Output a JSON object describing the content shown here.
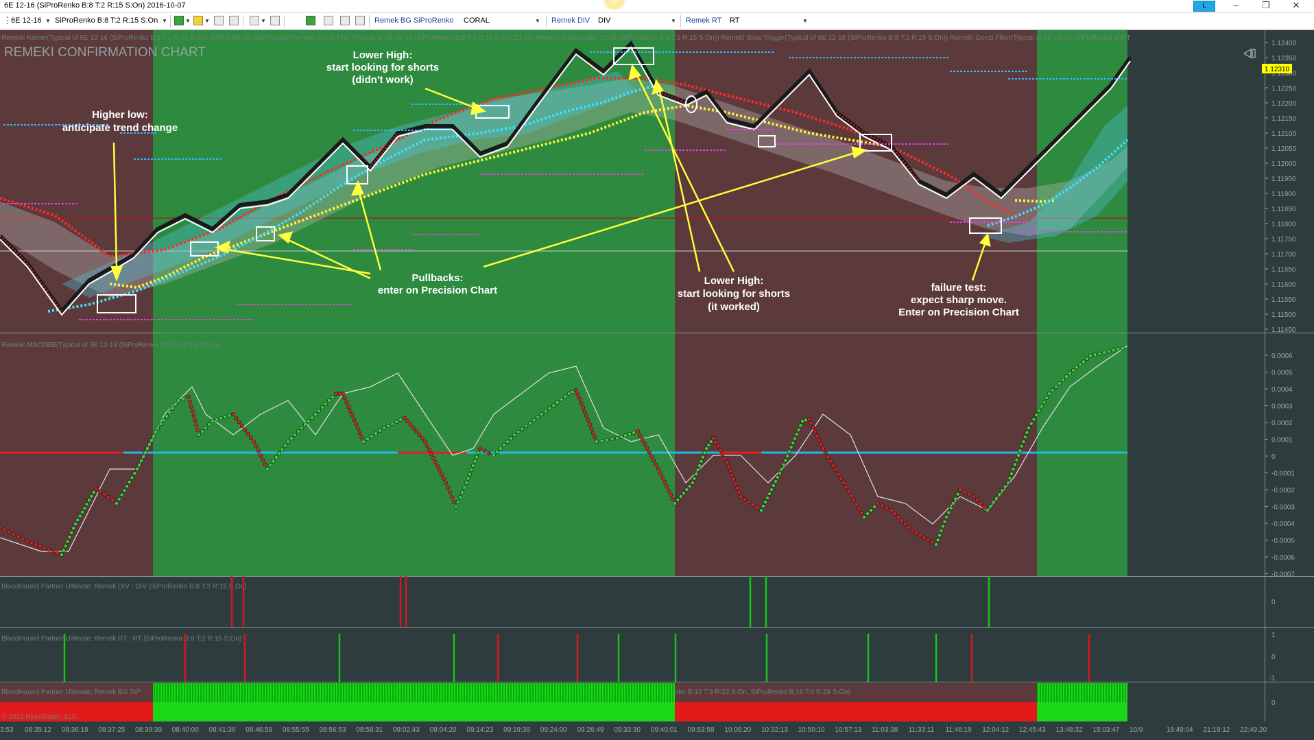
{
  "window": {
    "title": "6E 12-16 (SiProRenko B:8 T:2 R:15 S:On)  2016-10-07",
    "link_button": "L",
    "minimize": "–",
    "restore": "❐",
    "close": "✕"
  },
  "toolbar": {
    "instrument": "6E 12-16",
    "bar_type": "SiProRenko B:8 T:2 R:15 S:On",
    "remek_bg_label": "Remek BG SiProRenko",
    "remek_bg_value": "CORAL",
    "remek_div_label": "Remek DIV",
    "remek_div_value": "DIV",
    "remek_rt_label": "Remek RT",
    "remek_rt_value": "RT"
  },
  "price_panel": {
    "watermark": "REMEKI CONFIRMATION CHART",
    "indicator_header": "Remek! Kelner(Typical of 6E 12-16 (SiProRenko B:8 T:2 R:15 S:On),EMA,EMA,Simple(Range)  Remek! Gonzi Filter(Typical of 6E 12-16 (SiProRenko B:8 T:2 R:15 S:On),21,30)  Remek! Bolinger(6E 12-16 (SiProRenko B:8 T:2 R:15 S:On))  Remek! Slow Trigger(Typical of 6E 12-16 (SiProRenko B:8 T:2 R:15 S:On))  Remek! Gonzi Filter(Typical of 6E 12-16 (SiProRenko B:8 T",
    "last_price": "1.12310",
    "price_ticks": [
      "1.12400",
      "1.12350",
      "1.12300",
      "1.12250",
      "1.12200",
      "1.12150",
      "1.12100",
      "1.12050",
      "1.12000",
      "1.11950",
      "1.11900",
      "1.11850",
      "1.11800",
      "1.11750",
      "1.11700",
      "1.11650",
      "1.11600",
      "1.11550",
      "1.11500",
      "1.11450"
    ]
  },
  "annotations": {
    "higher_low": [
      "Higher low:",
      "anticipate trend change"
    ],
    "lower_high_1": [
      "Lower High:",
      "start looking for shorts",
      "(didn't work)"
    ],
    "pullbacks": [
      "Pullbacks:",
      "enter on Precision Chart"
    ],
    "lower_high_2": [
      "Lower High:",
      "start looking for shorts",
      "(it worked)"
    ],
    "failure_test": [
      "failure test:",
      "expect sharp move.",
      "Enter on Precision Chart"
    ]
  },
  "macd_panel": {
    "header": "Remek! MACDBB(Typical of 6E 12-16 (SiProRenko B:8 T:2 R:15 S:On))",
    "ticks": [
      "0.0006",
      "0.0005",
      "0.0004",
      "0.0003",
      "0.0002",
      "0.0001",
      "0",
      "-0.0001",
      "-0.0002",
      "-0.0003",
      "-0.0004",
      "-0.0005",
      "-0.0006",
      "-0.0007"
    ]
  },
  "div_panel": {
    "header": "BloodHound Partner Ultimate: Remek DIV : DIV (SiProRenko B:8 T:2 R:15 S:On)",
    "ticks": [
      "0"
    ]
  },
  "rt_panel": {
    "header": "BloodHound Partner Ultimate: Remek RT : RT (SiProRenko B:8 T:2 R:15 S:On)",
    "ticks": [
      "1",
      "0",
      "-1"
    ]
  },
  "bg_panel": {
    "header": "BloodHound Partner Ultimate: Remek BG SiP",
    "header_right": "nko B:12 T:3 R:22 S:On, SiProRenko B:16 T:4 R:29 S:On)",
    "ticks": [
      "0"
    ],
    "copyright": "© 2016 NinjaTrader, LLC"
  },
  "time_axis": [
    "08:35:12",
    "08:36:18",
    "08:37:25",
    "08:39:39",
    "08:40:00",
    "08:41:36",
    "08:46:59",
    "08:55:55",
    "08:56:53",
    "08:58:31",
    "09:02:43",
    "09:04:20",
    "09:14:23",
    "09:19:36",
    "09:24:00",
    "09:26:49",
    "09:33:30",
    "09:40:01",
    "09:53:58",
    "10:06:20",
    "10:32:13",
    "10:50:10",
    "10:57:13",
    "11:03:38",
    "11:33:11",
    "11:46:19",
    "12:04:12",
    "12:45:43",
    "13:48:32",
    "15:03:47",
    "10/9",
    "19:49:04",
    "21:19:12",
    "22:49:20"
  ],
  "time_axis_left_partial": "3:53",
  "colors": {
    "bg_red": "#5c3a3b",
    "bg_green": "#2e8a3e",
    "bg_dark": "#2f3c3e",
    "annot_arrow": "#ffff3c",
    "macd_zero": "#22b8e8",
    "macd_red_line": "#e02020",
    "up_dot": "#3dd23d",
    "down_dot": "#e02020"
  }
}
